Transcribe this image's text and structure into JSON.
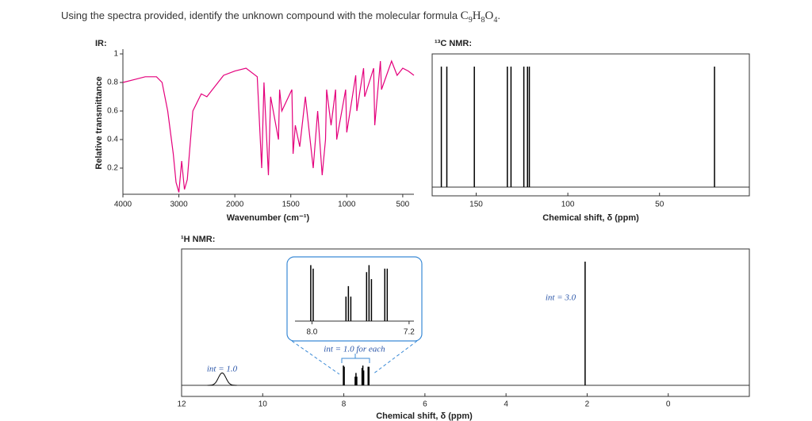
{
  "question": {
    "text": "Using the spectra provided, identify the unknown compound with the molecular formula ",
    "formula": [
      "C",
      "9",
      "H",
      "8",
      "O",
      "4"
    ],
    "end": "."
  },
  "chart_data": [
    {
      "type": "line",
      "title": "IR:",
      "xlabel": "Wavenumber (cm⁻¹)",
      "ylabel": "Relative transmittance",
      "color": "#e4007c",
      "xscale": "split",
      "xlim": [
        4000,
        400
      ],
      "xticks": [
        4000,
        3000,
        2000,
        1500,
        1000,
        500
      ],
      "ylim": [
        0,
        1
      ],
      "yticks": [
        0.2,
        0.4,
        0.6,
        0.8,
        1
      ],
      "x": [
        4000,
        3800,
        3600,
        3400,
        3300,
        3200,
        3100,
        3050,
        3000,
        2950,
        2900,
        2850,
        2750,
        2600,
        2500,
        2400,
        2200,
        2000,
        1900,
        1800,
        1760,
        1740,
        1700,
        1680,
        1610,
        1600,
        1580,
        1490,
        1480,
        1460,
        1420,
        1370,
        1300,
        1260,
        1220,
        1190,
        1180,
        1140,
        1100,
        1090,
        1010,
        1000,
        920,
        910,
        850,
        840,
        760,
        750,
        700,
        690,
        600,
        550,
        500,
        450,
        400
      ],
      "values": [
        0.8,
        0.82,
        0.84,
        0.84,
        0.8,
        0.6,
        0.3,
        0.1,
        0.03,
        0.25,
        0.05,
        0.12,
        0.6,
        0.72,
        0.7,
        0.75,
        0.85,
        0.88,
        0.9,
        0.84,
        0.2,
        0.8,
        0.15,
        0.7,
        0.4,
        0.75,
        0.6,
        0.75,
        0.3,
        0.5,
        0.35,
        0.7,
        0.2,
        0.6,
        0.15,
        0.4,
        0.75,
        0.5,
        0.75,
        0.4,
        0.75,
        0.45,
        0.85,
        0.6,
        0.9,
        0.7,
        0.9,
        0.5,
        0.95,
        0.75,
        0.95,
        0.85,
        0.9,
        0.88,
        0.85
      ]
    },
    {
      "type": "stick",
      "title": "¹³C NMR:",
      "xlabel": "Chemical shift, δ (ppm)",
      "color": "#000000",
      "xlim": [
        174,
        1
      ],
      "xticks": [
        150,
        100,
        50
      ],
      "x": [
        169,
        166,
        151,
        133,
        131,
        124,
        122,
        121,
        20
      ]
    },
    {
      "type": "nmr",
      "title": "¹H NMR:",
      "xlabel": "Chemical shift, δ (ppm)",
      "color": "#000000",
      "xlim": [
        12,
        -2
      ],
      "xticks": [
        12,
        10,
        8,
        6,
        4,
        2,
        0
      ],
      "ylim": [
        0,
        1
      ],
      "x": [
        8.01,
        7.99,
        7.72,
        7.7,
        7.68,
        7.55,
        7.53,
        7.51,
        7.4,
        7.38,
        2.05
      ],
      "values": [
        0.16,
        0.15,
        0.07,
        0.1,
        0.07,
        0.14,
        0.16,
        0.12,
        0.15,
        0.15,
        1
      ],
      "broad_x": 11,
      "broad_value": 0.1,
      "annotations": [
        "int = 1.0",
        "int = 1.0 for each",
        "int = 3.0"
      ],
      "inset": {
        "xlim": [
          8.14,
          7.16
        ],
        "xticks": [
          {
            "value": 8,
            "label": "8.0"
          },
          7.2
        ],
        "ylim": [
          0,
          0.17
        ],
        "color": "#3a8ad6"
      }
    }
  ]
}
